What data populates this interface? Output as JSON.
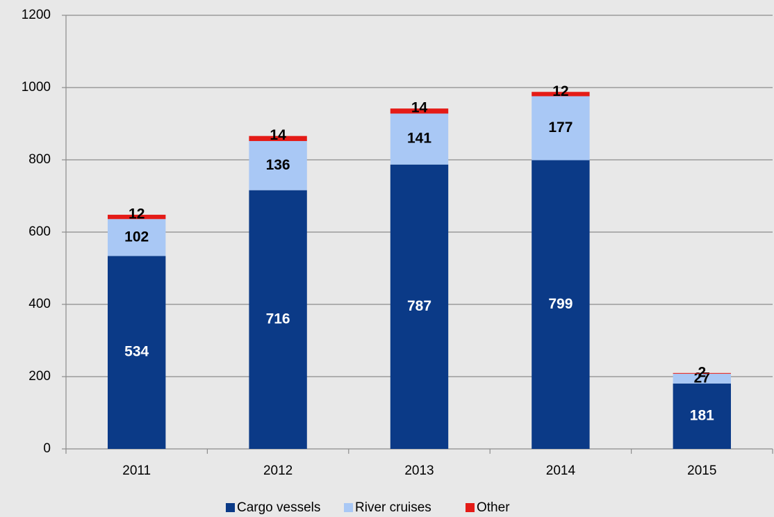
{
  "chart_data": {
    "type": "stacked_bar",
    "categories": [
      "2011",
      "2012",
      "2013",
      "2014",
      "2015"
    ],
    "series": [
      {
        "name": "Cargo vessels",
        "color": "#0b3a87",
        "values": [
          534,
          716,
          787,
          799,
          181
        ]
      },
      {
        "name": "River cruises",
        "color": "#a9c8f5",
        "values": [
          102,
          136,
          141,
          177,
          27
        ]
      },
      {
        "name": "Other",
        "color": "#e41b17",
        "values": [
          12,
          14,
          14,
          12,
          2
        ]
      }
    ],
    "ylim": [
      0,
      1200
    ],
    "yticks": [
      0,
      200,
      400,
      600,
      800,
      1000,
      1200
    ],
    "grid": true,
    "legend": "bottom"
  }
}
